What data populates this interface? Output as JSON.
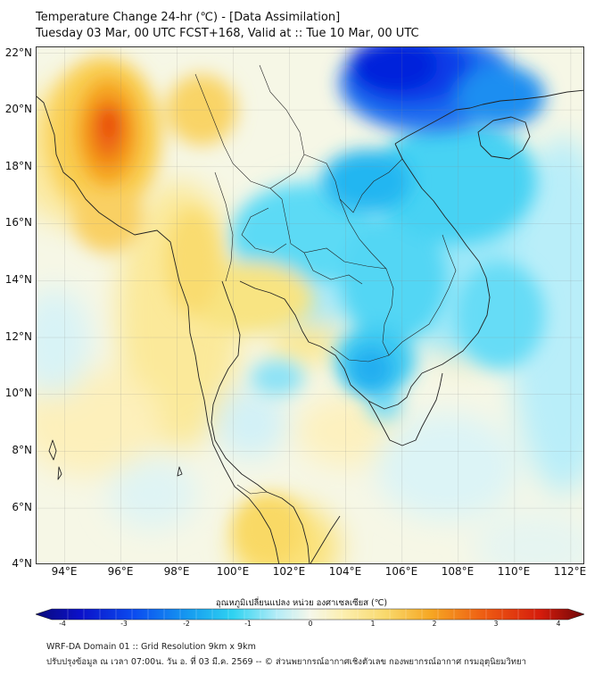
{
  "header": {
    "title_line1": "Temperature Change 24-hr (℃) - [Data Assimilation]",
    "title_line2": "Tuesday 03 Mar, 00 UTC FCST+168, Valid at :: Tue 10 Mar, 00 UTC"
  },
  "map": {
    "lat_labels": [
      "22°N",
      "20°N",
      "18°N",
      "16°N",
      "14°N",
      "12°N",
      "10°N",
      "8°N",
      "6°N",
      "4°N"
    ],
    "lon_labels": [
      "94°E",
      "96°E",
      "98°E",
      "100°E",
      "102°E",
      "104°E",
      "106°E",
      "108°E",
      "110°E",
      "112°E"
    ],
    "lon_range": [
      93,
      112.5
    ],
    "lat_range": [
      4,
      22.2
    ],
    "colors": {
      "warm_strong": "#e9450f",
      "warm": "#f7a21e",
      "warm_light": "#fbe58a",
      "neutral": "#f4f6e8",
      "cool_light": "#b6ecf7",
      "cool": "#2ed3f1",
      "cool_strong": "#0a4cf0",
      "cold_core": "#0017d8"
    }
  },
  "colorbar": {
    "title": "อุณหภูมิเปลี่ยนแปลง หน่วย องศาเซลเซียส (℃)",
    "ticks": [
      "-4",
      "-3",
      "-2",
      "-1",
      "0",
      "1",
      "2",
      "3",
      "4"
    ],
    "range": [
      -4,
      4
    ]
  },
  "footer": {
    "line1": "WRF-DA Domain 01 :: Grid Resolution 9km x 9km",
    "line2": "ปรับปรุงข้อมูล ณ เวลา 07:00น. วัน อ. ที่ 03 มี.ค. 2569 -- © ส่วนพยากรณ์อากาศเชิงตัวเลข กองพยากรณ์อากาศ กรมอุตุนิยมวิทยา"
  }
}
